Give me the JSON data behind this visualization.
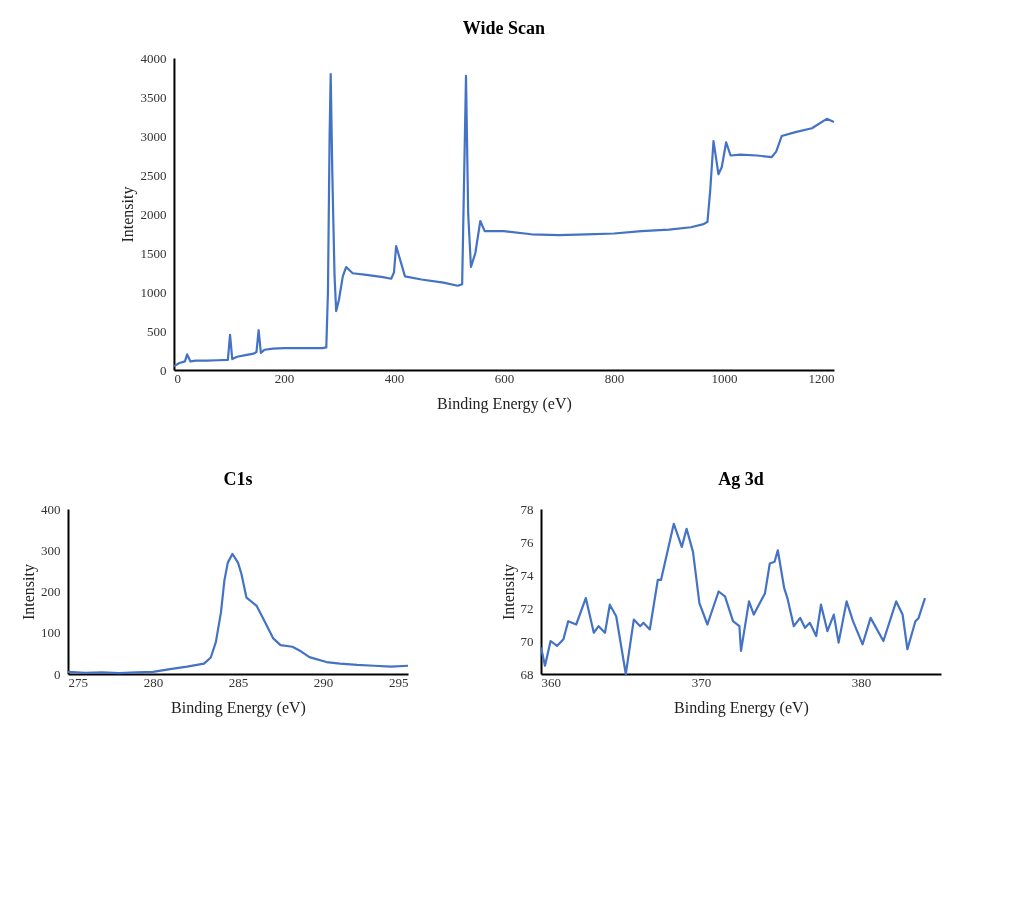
{
  "chart_data": [
    {
      "type": "line",
      "title": "Wide Scan",
      "xlabel": "Binding Energy (eV)",
      "ylabel": "Intensity",
      "xlim": [
        0,
        1200
      ],
      "ylim": [
        0,
        4000
      ],
      "xticks": [
        0,
        200,
        400,
        600,
        800,
        1000,
        1200
      ],
      "yticks": [
        0,
        500,
        1000,
        1500,
        2000,
        2500,
        3000,
        3500,
        4000
      ],
      "grid": false,
      "x": [
        0,
        10,
        20,
        24,
        30,
        40,
        60,
        80,
        98,
        102,
        106,
        115,
        130,
        145,
        150,
        154,
        158,
        165,
        180,
        200,
        240,
        270,
        277,
        280,
        283,
        285,
        288,
        292,
        295,
        300,
        307,
        313,
        325,
        350,
        380,
        395,
        400,
        404,
        420,
        450,
        490,
        516,
        524,
        531,
        535,
        540,
        548,
        557,
        565,
        600,
        650,
        700,
        750,
        800,
        850,
        900,
        940,
        963,
        970,
        975,
        981,
        986,
        990,
        996,
        1004,
        1012,
        1030,
        1060,
        1087,
        1095,
        1105,
        1130,
        1160,
        1187,
        1200
      ],
      "series": [
        {
          "color": "#4472c4",
          "values": [
            50,
            90,
            110,
            200,
            110,
            120,
            120,
            125,
            130,
            450,
            140,
            170,
            190,
            210,
            230,
            510,
            220,
            260,
            275,
            280,
            280,
            280,
            290,
            1000,
            3000,
            3795,
            2500,
            1200,
            755,
            900,
            1200,
            1320,
            1240,
            1220,
            1190,
            1170,
            1250,
            1590,
            1200,
            1160,
            1120,
            1080,
            1100,
            3770,
            2000,
            1320,
            1500,
            1910,
            1780,
            1780,
            1740,
            1730,
            1740,
            1750,
            1780,
            1800,
            1830,
            1870,
            1900,
            2300,
            2935,
            2700,
            2510,
            2600,
            2920,
            2750,
            2760,
            2750,
            2730,
            2800,
            3000,
            3050,
            3100,
            3220,
            3180
          ]
        }
      ]
    },
    {
      "type": "line",
      "title": "C1s",
      "xlabel": "Binding Energy (eV)",
      "ylabel": "Intensity",
      "xlim": [
        275,
        295
      ],
      "ylim": [
        0,
        400
      ],
      "xticks": [
        275,
        280,
        285,
        290,
        295
      ],
      "yticks": [
        0,
        100,
        200,
        300,
        400
      ],
      "grid": false,
      "x": [
        275,
        276,
        277,
        278,
        279,
        280,
        281,
        282,
        283,
        283.4,
        283.7,
        284,
        284.2,
        284.4,
        284.67,
        285,
        285.2,
        285.5,
        286.1,
        286.6,
        287.06,
        287.5,
        288.2,
        288.7,
        289.2,
        290.2,
        291,
        292,
        293,
        294,
        295
      ],
      "series": [
        {
          "color": "#4472c4",
          "values": [
            5,
            3,
            4,
            2,
            4,
            5,
            12,
            18,
            25,
            40,
            78,
            150,
            227,
            270,
            291,
            270,
            243,
            185,
            165,
            125,
            87,
            70,
            66,
            55,
            41,
            29,
            25,
            22,
            20,
            18,
            20
          ]
        }
      ]
    },
    {
      "type": "line",
      "title": "Ag 3d",
      "xlabel": "Binding Energy (eV)",
      "ylabel": "Intensity",
      "xlim": [
        360,
        385
      ],
      "ylim": [
        68,
        78
      ],
      "xticks": [
        360,
        370,
        380
      ],
      "yticks": [
        68,
        70,
        72,
        74,
        76,
        78
      ],
      "grid": false,
      "x": [
        360,
        360.25,
        360.6,
        361.0,
        361.4,
        361.7,
        362.2,
        362.8,
        363.3,
        363.6,
        364.0,
        364.3,
        364.7,
        365.3,
        365.8,
        366.2,
        366.4,
        366.8,
        367.3,
        367.5,
        368.3,
        368.8,
        369.1,
        369.5,
        369.9,
        370.4,
        371.1,
        371.5,
        372.0,
        372.4,
        372.5,
        373.0,
        373.3,
        374.0,
        374.3,
        374.6,
        374.8,
        375.2,
        375.4,
        375.8,
        376.2,
        376.5,
        376.8,
        377.2,
        377.5,
        377.9,
        378.3,
        378.6,
        379.1,
        379.5,
        380.1,
        380.6,
        381.4,
        382.2,
        382.6,
        382.9,
        383.4,
        383.6,
        384.0
      ],
      "series": [
        {
          "color": "#4472c4",
          "values": [
            69.6,
            68.5,
            70.0,
            69.7,
            70.1,
            71.2,
            71.0,
            72.6,
            70.5,
            70.9,
            70.5,
            72.2,
            71.5,
            68.0,
            71.3,
            70.9,
            71.1,
            70.7,
            73.7,
            73.7,
            77.1,
            75.7,
            76.8,
            75.4,
            72.3,
            71.0,
            73.0,
            72.7,
            71.2,
            70.9,
            69.4,
            72.4,
            71.6,
            72.9,
            74.7,
            74.8,
            75.5,
            73.2,
            72.6,
            70.9,
            71.4,
            70.8,
            71.1,
            70.3,
            72.2,
            70.6,
            71.6,
            69.9,
            72.4,
            71.2,
            69.8,
            71.4,
            70.0,
            72.4,
            71.6,
            69.5,
            71.2,
            71.4,
            72.6
          ]
        }
      ]
    }
  ]
}
